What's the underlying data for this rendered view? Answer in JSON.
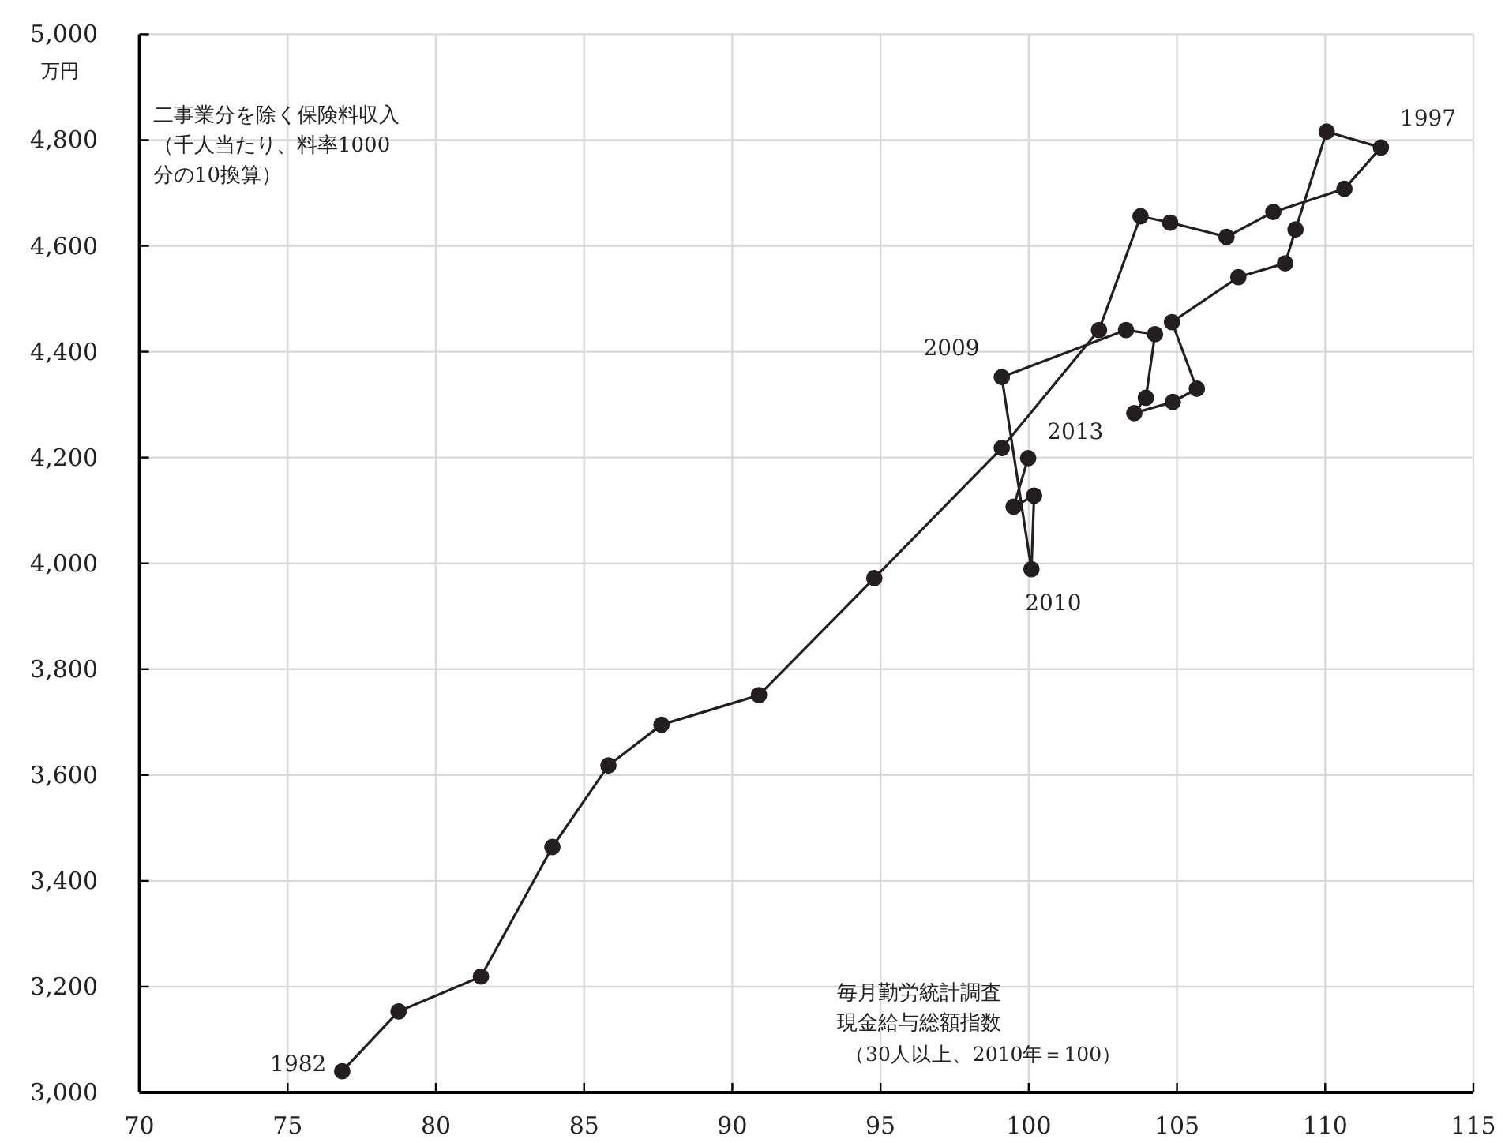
{
  "chart_data": {
    "type": "line",
    "xlabel": "毎月勤労統計調査現金給与総額指数",
    "ylabel": "二事業分を除く保険料収入（千人当たり、料率1000分の10換算）",
    "x": [
      76.84,
      78.74,
      81.52,
      83.93,
      85.82,
      87.61,
      90.9,
      94.79,
      99.09,
      102.37,
      103.77,
      104.77,
      106.67,
      108.25,
      110.65,
      111.88,
      110.05,
      109.0,
      108.65,
      107.07,
      104.83,
      105.67,
      104.86,
      103.56,
      103.95,
      104.26,
      103.28,
      99.09,
      100.09,
      100.18,
      99.49,
      99.98
    ],
    "values": [
      3040,
      3153,
      3219,
      3464,
      3618,
      3695,
      3751,
      3972,
      4218,
      4441,
      4656,
      4644,
      4617,
      4664,
      4708,
      4786,
      4816,
      4631,
      4567,
      4541,
      4456,
      4330,
      4305,
      4284,
      4313,
      4433,
      4441,
      4352,
      3989,
      4128,
      4107,
      4199
    ],
    "color": "#231f20",
    "marker": "circle",
    "grid": true,
    "xlim": [
      70,
      115
    ],
    "ylim": [
      3000,
      5000
    ],
    "xticks": [
      70,
      75,
      80,
      85,
      90,
      95,
      100,
      105,
      110,
      115
    ],
    "yticks": [
      {
        "value": 3000,
        "label": "3,000"
      },
      {
        "value": 3200,
        "label": "3,200"
      },
      {
        "value": 3400,
        "label": "3,400"
      },
      {
        "value": 3600,
        "label": "3,600"
      },
      {
        "value": 3800,
        "label": "3,800"
      },
      {
        "value": 4000,
        "label": "4,000"
      },
      {
        "value": 4200,
        "label": "4,200"
      },
      {
        "value": 4400,
        "label": "4,400"
      },
      {
        "value": 4600,
        "label": "4,600"
      },
      {
        "value": 4800,
        "label": "4,800"
      },
      {
        "value": 5000,
        "label": "5,000"
      }
    ],
    "annotations": [
      "万円",
      "（30人以上、2010年＝100）",
      {
        "text": "1982",
        "x": 76.84,
        "y": 3040
      },
      {
        "text": "1997",
        "x": 111.88,
        "y": 4786
      },
      {
        "text": "2009",
        "x": 99.09,
        "y": 4352
      },
      {
        "text": "2010",
        "x": 100.09,
        "y": 3989
      },
      {
        "text": "2013",
        "x": 99.98,
        "y": 4199
      }
    ]
  }
}
